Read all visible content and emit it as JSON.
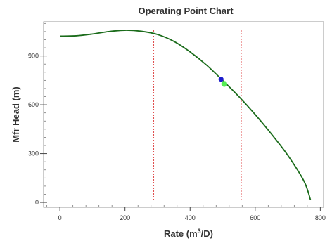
{
  "chart_data": {
    "type": "line",
    "title": "Operating Point Chart",
    "xlabel": "Rate (m",
    "xlabel_sup": "3",
    "xlabel_tail": "/D)",
    "ylabel": "Mfr Head (m)",
    "xlim": [
      -50,
      810
    ],
    "ylim": [
      -30,
      1110
    ],
    "x_ticks": [
      0,
      200,
      400,
      600,
      800
    ],
    "x_tick_labels": [
      "0",
      "200",
      "400",
      "600",
      "800"
    ],
    "y_ticks": [
      0,
      300,
      600,
      900
    ],
    "y_tick_labels": [
      "0",
      "300",
      "600",
      "900"
    ],
    "grid": false,
    "series": [
      {
        "color": "#1a6b1a",
        "x": [
          0,
          50,
          100,
          150,
          200,
          250,
          300,
          350,
          400,
          450,
          500,
          550,
          600,
          650,
          700,
          750,
          770
        ],
        "y": [
          1022,
          1024,
          1035,
          1050,
          1058,
          1052,
          1032,
          990,
          925,
          845,
          750,
          650,
          540,
          420,
          290,
          130,
          15
        ]
      }
    ],
    "vertical_lines": [
      {
        "x": 288,
        "color": "#e05050",
        "style": "dotted"
      },
      {
        "x": 557,
        "color": "#e05050",
        "style": "dotted"
      }
    ],
    "points": [
      {
        "x": 495,
        "y": 757,
        "color": "#1c1ccc"
      },
      {
        "x": 505,
        "y": 728,
        "color": "#55ee55"
      }
    ]
  }
}
